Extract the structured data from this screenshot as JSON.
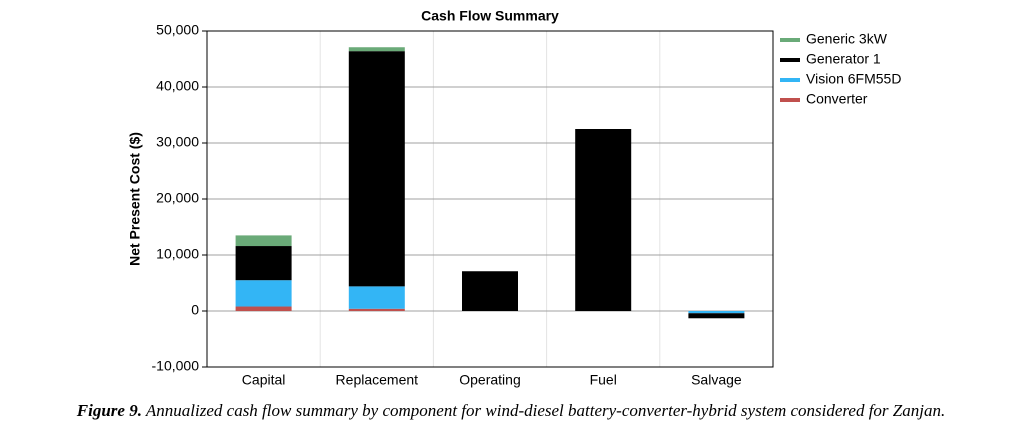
{
  "chart_data": {
    "type": "stacked-bar",
    "title": "Cash Flow Summary",
    "y_label": "Net Present Cost ($)",
    "categories": [
      "Capital",
      "Replacement",
      "Operating",
      "Fuel",
      "Salvage"
    ],
    "series": [
      {
        "name": "Generic 3kW",
        "color": "#6aaa78",
        "values": [
          1900,
          700,
          0,
          0,
          0
        ]
      },
      {
        "name": "Generator 1",
        "color": "#000000",
        "values": [
          6100,
          42000,
          7100,
          32500,
          -900
        ]
      },
      {
        "name": "Vision 6FM55D",
        "color": "#33b5f5",
        "values": [
          4700,
          4000,
          0,
          0,
          -400
        ]
      },
      {
        "name": "Converter",
        "color": "#c0504d",
        "values": [
          800,
          400,
          0,
          0,
          0
        ]
      }
    ],
    "ylim": [
      -10000,
      50000
    ],
    "yticks": [
      {
        "value": -10000,
        "label": "-10,000"
      },
      0,
      {
        "value": 10000,
        "label": "10,000"
      },
      {
        "value": 20000,
        "label": "20,000"
      },
      {
        "value": 30000,
        "label": "30,000"
      },
      {
        "value": 40000,
        "label": "40,000"
      },
      {
        "value": 50000,
        "label": "50,000"
      }
    ],
    "grid": true,
    "legend": "right"
  },
  "caption": {
    "label": "Figure 9.",
    "text": "Annualized cash flow summary by component for wind-diesel battery-converter-hybrid system considered for Zanjan."
  }
}
